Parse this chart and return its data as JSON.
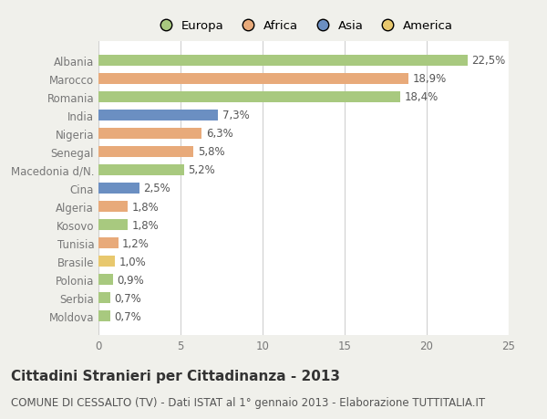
{
  "categories": [
    "Albania",
    "Marocco",
    "Romania",
    "India",
    "Nigeria",
    "Senegal",
    "Macedonia d/N.",
    "Cina",
    "Algeria",
    "Kosovo",
    "Tunisia",
    "Brasile",
    "Polonia",
    "Serbia",
    "Moldova"
  ],
  "values": [
    22.5,
    18.9,
    18.4,
    7.3,
    6.3,
    5.8,
    5.2,
    2.5,
    1.8,
    1.8,
    1.2,
    1.0,
    0.9,
    0.7,
    0.7
  ],
  "labels": [
    "22,5%",
    "18,9%",
    "18,4%",
    "7,3%",
    "6,3%",
    "5,8%",
    "5,2%",
    "2,5%",
    "1,8%",
    "1,8%",
    "1,2%",
    "1,0%",
    "0,9%",
    "0,7%",
    "0,7%"
  ],
  "colors": [
    "#a8c97f",
    "#e8aa7a",
    "#a8c97f",
    "#6b8fc2",
    "#e8aa7a",
    "#e8aa7a",
    "#a8c97f",
    "#6b8fc2",
    "#e8aa7a",
    "#a8c97f",
    "#e8aa7a",
    "#e8c86e",
    "#a8c97f",
    "#a8c97f",
    "#a8c97f"
  ],
  "legend_labels": [
    "Europa",
    "Africa",
    "Asia",
    "America"
  ],
  "legend_colors": [
    "#a8c97f",
    "#e8aa7a",
    "#6b8fc2",
    "#e8c86e"
  ],
  "xlim": [
    0,
    25
  ],
  "xticks": [
    0,
    5,
    10,
    15,
    20,
    25
  ],
  "title": "Cittadini Stranieri per Cittadinanza - 2013",
  "subtitle": "COMUNE DI CESSALTO (TV) - Dati ISTAT al 1° gennaio 2013 - Elaborazione TUTTITALIA.IT",
  "bg_color": "#f0f0eb",
  "bar_bg_color": "#ffffff",
  "grid_color": "#d0d0d0",
  "title_fontsize": 11,
  "subtitle_fontsize": 8.5,
  "label_fontsize": 8.5,
  "tick_fontsize": 8.5,
  "legend_fontsize": 9.5
}
